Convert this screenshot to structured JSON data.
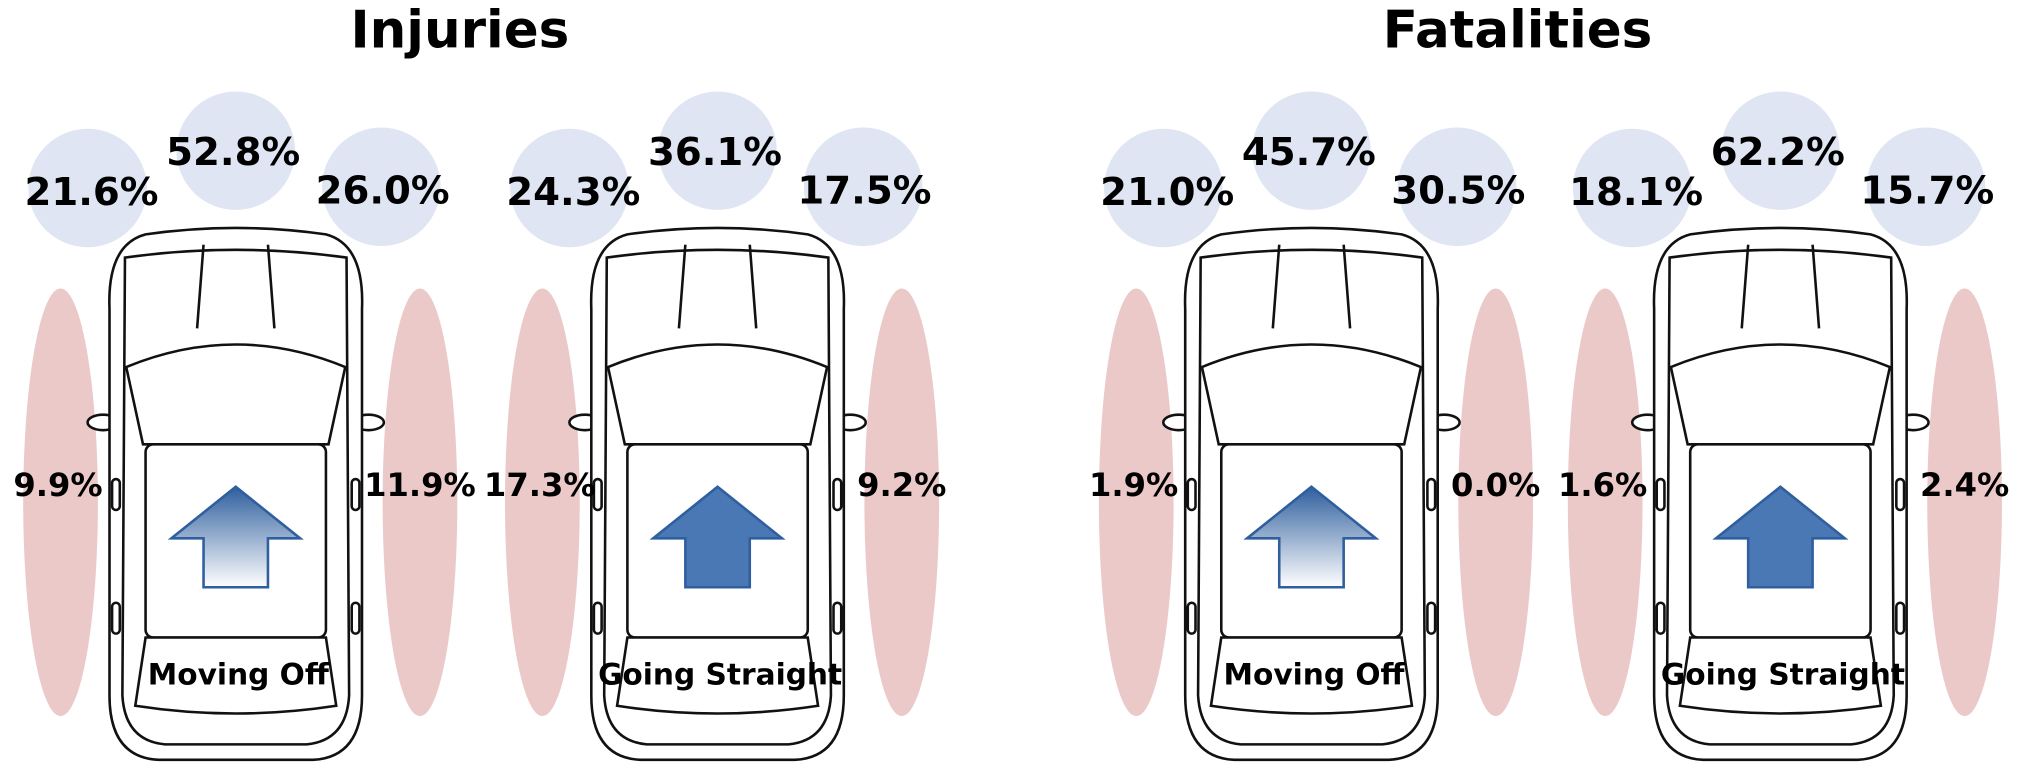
{
  "panels": [
    {
      "title": "Injuries",
      "cars": [
        {
          "label": "Moving Off",
          "front_left": "21.6%",
          "front": "52.8%",
          "front_right": "26.0%",
          "left": "9.9%",
          "right": "11.9%"
        },
        {
          "label": "Going Straight",
          "front_left": "24.3%",
          "front": "36.1%",
          "front_right": "17.5%",
          "left": "17.3%",
          "right": "9.2%"
        }
      ]
    },
    {
      "title": "Fatalities",
      "cars": [
        {
          "label": "Moving Off",
          "front_left": "21.0%",
          "front": "45.7%",
          "front_right": "30.5%",
          "left": "1.9%",
          "right": "0.0%"
        },
        {
          "label": "Going Straight",
          "front_left": "18.1%",
          "front": "62.2%",
          "front_right": "15.7%",
          "left": "1.6%",
          "right": "2.4%"
        }
      ]
    }
  ]
}
